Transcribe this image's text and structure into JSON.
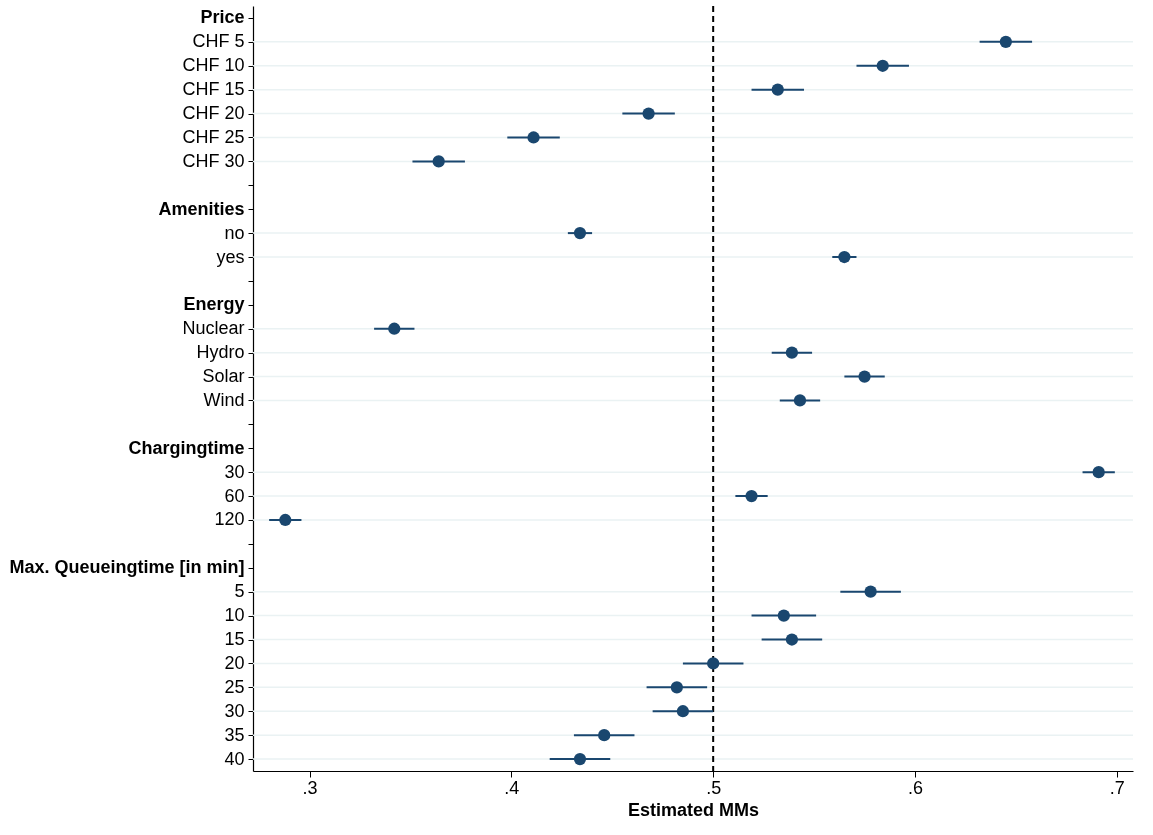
{
  "chart_data": {
    "type": "scatter",
    "orientation": "horizontal",
    "xlabel": "Estimated MMs",
    "categories": [
      "Price",
      "CHF 5",
      "CHF 10",
      "CHF 15",
      "CHF 20",
      "CHF 25",
      "CHF 30",
      null,
      "Amenities",
      "no",
      "yes",
      null,
      "Energy",
      "Nuclear",
      "Hydro",
      "Solar",
      "Wind",
      null,
      "Chargingtime",
      "30",
      "60",
      "120",
      null,
      "Max. Queueingtime [in min]",
      "5",
      "10",
      "15",
      "20",
      "25",
      "30",
      "35",
      "40"
    ],
    "values": [
      null,
      0.645,
      0.584,
      0.532,
      0.468,
      0.411,
      0.364,
      null,
      null,
      0.434,
      0.565,
      null,
      null,
      0.342,
      0.539,
      0.575,
      0.543,
      null,
      null,
      0.691,
      0.519,
      0.288,
      null,
      null,
      0.578,
      0.535,
      0.539,
      0.5,
      0.482,
      0.485,
      0.446,
      0.434
    ],
    "errors": [
      null,
      0.013,
      0.013,
      0.013,
      0.013,
      0.013,
      0.013,
      null,
      null,
      0.006,
      0.006,
      null,
      null,
      0.01,
      0.01,
      0.01,
      0.01,
      null,
      null,
      0.008,
      0.008,
      0.008,
      null,
      null,
      0.015,
      0.016,
      0.015,
      0.015,
      0.015,
      0.015,
      0.015,
      0.015
    ],
    "color": "#1a476f",
    "marker": "circle",
    "grid": "y",
    "legend": false,
    "xlim": [
      0.272,
      0.708
    ],
    "xticks": [
      {
        "value": 0.3,
        "label": ".3"
      },
      {
        "value": 0.4,
        "label": ".4"
      },
      {
        "value": 0.5,
        "label": ".5"
      },
      {
        "value": 0.6,
        "label": ".6"
      },
      {
        "value": 0.7,
        "label": ".7"
      }
    ],
    "ref_lines": [
      {
        "axis": "x",
        "value": 0.5,
        "color": "#000000",
        "line_style": "dashed"
      }
    ]
  }
}
